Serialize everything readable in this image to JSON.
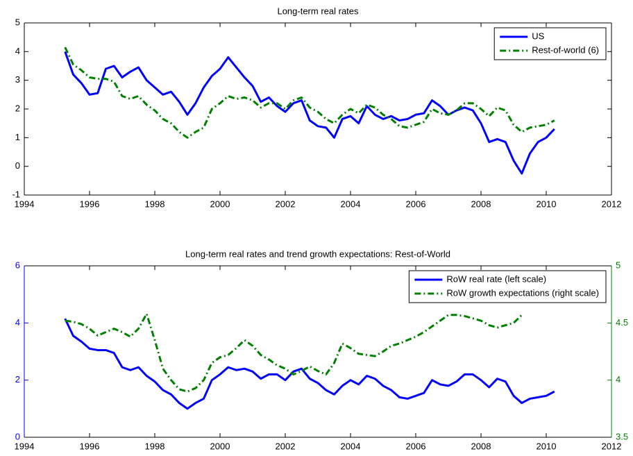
{
  "chart_data": [
    {
      "type": "line",
      "title": "Long-term real rates",
      "xlim": [
        1994,
        2012
      ],
      "xticks": [
        1994,
        1996,
        1998,
        2000,
        2002,
        2004,
        2006,
        2008,
        2010,
        2012
      ],
      "ylim": [
        -1,
        5
      ],
      "yticks": [
        -1,
        0,
        1,
        2,
        3,
        4,
        5
      ],
      "legend": "upper right",
      "series": [
        {
          "name": "US",
          "color": "#0000ff",
          "linestyle": "solid",
          "x": [
            1995.25,
            1995.5,
            1995.75,
            1996,
            1996.25,
            1996.5,
            1996.75,
            1997,
            1997.25,
            1997.5,
            1997.75,
            1998,
            1998.25,
            1998.5,
            1998.75,
            1999,
            1999.25,
            1999.5,
            1999.75,
            2000,
            2000.25,
            2000.5,
            2000.75,
            2001,
            2001.25,
            2001.5,
            2001.75,
            2002,
            2002.25,
            2002.5,
            2002.75,
            2003,
            2003.25,
            2003.5,
            2003.75,
            2004,
            2004.25,
            2004.5,
            2004.75,
            2005,
            2005.25,
            2005.5,
            2005.75,
            2006,
            2006.25,
            2006.5,
            2006.75,
            2007,
            2007.25,
            2007.5,
            2007.75,
            2008,
            2008.25,
            2008.5,
            2008.75,
            2009,
            2009.25,
            2009.5,
            2009.75,
            2010,
            2010.25
          ],
          "values": [
            4.0,
            3.2,
            2.9,
            2.5,
            2.55,
            3.4,
            3.5,
            3.1,
            3.3,
            3.45,
            3.0,
            2.75,
            2.5,
            2.6,
            2.25,
            1.8,
            2.2,
            2.75,
            3.15,
            3.4,
            3.8,
            3.45,
            3.1,
            2.8,
            2.25,
            2.4,
            2.1,
            1.9,
            2.2,
            2.3,
            1.6,
            1.4,
            1.35,
            1.0,
            1.65,
            1.75,
            1.5,
            2.1,
            1.8,
            1.65,
            1.75,
            1.6,
            1.65,
            1.8,
            1.85,
            2.3,
            2.1,
            1.8,
            1.95,
            2.05,
            1.95,
            1.5,
            0.85,
            0.95,
            0.85,
            0.2,
            -0.25,
            0.45,
            0.85,
            1.0,
            1.3
          ]
        },
        {
          "name": "Rest-of-world (6)",
          "color": "#008000",
          "linestyle": "dashdot",
          "x": [
            1995.25,
            1995.5,
            1995.75,
            1996,
            1996.25,
            1996.5,
            1996.75,
            1997,
            1997.25,
            1997.5,
            1997.75,
            1998,
            1998.25,
            1998.5,
            1998.75,
            1999,
            1999.25,
            1999.5,
            1999.75,
            2000,
            2000.25,
            2000.5,
            2000.75,
            2001,
            2001.25,
            2001.5,
            2001.75,
            2002,
            2002.25,
            2002.5,
            2002.75,
            2003,
            2003.25,
            2003.5,
            2003.75,
            2004,
            2004.25,
            2004.5,
            2004.75,
            2005,
            2005.25,
            2005.5,
            2005.75,
            2006,
            2006.25,
            2006.5,
            2006.75,
            2007,
            2007.25,
            2007.5,
            2007.75,
            2008,
            2008.25,
            2008.5,
            2008.75,
            2009,
            2009.25,
            2009.5,
            2009.75,
            2010,
            2010.25
          ],
          "values": [
            4.15,
            3.55,
            3.35,
            3.1,
            3.05,
            3.05,
            2.95,
            2.45,
            2.35,
            2.45,
            2.15,
            1.95,
            1.65,
            1.5,
            1.2,
            1.0,
            1.2,
            1.35,
            2.0,
            2.2,
            2.45,
            2.35,
            2.4,
            2.3,
            2.05,
            2.2,
            2.2,
            2.0,
            2.3,
            2.4,
            2.05,
            1.9,
            1.65,
            1.5,
            1.8,
            2.0,
            1.85,
            2.15,
            2.05,
            1.8,
            1.65,
            1.4,
            1.35,
            1.45,
            1.55,
            2.0,
            1.85,
            1.8,
            1.95,
            2.2,
            2.2,
            2.0,
            1.75,
            2.05,
            1.95,
            1.45,
            1.2,
            1.35,
            1.4,
            1.45,
            1.6
          ]
        }
      ]
    },
    {
      "type": "line",
      "title": "Long-term real rates and trend growth expectations: Rest-of-World",
      "xlim": [
        1994,
        2012
      ],
      "xticks": [
        1994,
        1996,
        1998,
        2000,
        2002,
        2004,
        2006,
        2008,
        2010,
        2012
      ],
      "ylim": [
        0,
        6
      ],
      "yticks": [
        0,
        2,
        4,
        6
      ],
      "ycolor": "#0000ff",
      "y2lim": [
        3.5,
        5
      ],
      "y2ticks": [
        3.5,
        4,
        4.5,
        5
      ],
      "y2color": "#008000",
      "legend": "upper right",
      "series": [
        {
          "name": "RoW real rate (left scale)",
          "color": "#0000ff",
          "linestyle": "solid",
          "x": [
            1995.25,
            1995.5,
            1995.75,
            1996,
            1996.25,
            1996.5,
            1996.75,
            1997,
            1997.25,
            1997.5,
            1997.75,
            1998,
            1998.25,
            1998.5,
            1998.75,
            1999,
            1999.25,
            1999.5,
            1999.75,
            2000,
            2000.25,
            2000.5,
            2000.75,
            2001,
            2001.25,
            2001.5,
            2001.75,
            2002,
            2002.25,
            2002.5,
            2002.75,
            2003,
            2003.25,
            2003.5,
            2003.75,
            2004,
            2004.25,
            2004.5,
            2004.75,
            2005,
            2005.25,
            2005.5,
            2005.75,
            2006,
            2006.25,
            2006.5,
            2006.75,
            2007,
            2007.25,
            2007.5,
            2007.75,
            2008,
            2008.25,
            2008.5,
            2008.75,
            2009,
            2009.25,
            2009.5,
            2009.75,
            2010,
            2010.25
          ],
          "values": [
            4.15,
            3.55,
            3.35,
            3.1,
            3.05,
            3.05,
            2.95,
            2.45,
            2.35,
            2.45,
            2.15,
            1.95,
            1.65,
            1.5,
            1.2,
            1.0,
            1.2,
            1.35,
            2.0,
            2.2,
            2.45,
            2.35,
            2.4,
            2.3,
            2.05,
            2.2,
            2.2,
            2.0,
            2.3,
            2.4,
            2.05,
            1.9,
            1.65,
            1.5,
            1.8,
            2.0,
            1.85,
            2.15,
            2.05,
            1.8,
            1.65,
            1.4,
            1.35,
            1.45,
            1.55,
            2.0,
            1.85,
            1.8,
            1.95,
            2.2,
            2.2,
            2.0,
            1.75,
            2.05,
            1.95,
            1.45,
            1.2,
            1.35,
            1.4,
            1.45,
            1.6
          ]
        },
        {
          "name": "RoW growth expectations (right scale)",
          "color": "#008000",
          "linestyle": "dashdot",
          "axis": "y2",
          "x": [
            1995.25,
            1995.5,
            1995.75,
            1996,
            1996.25,
            1996.5,
            1996.75,
            1997,
            1997.25,
            1997.5,
            1997.75,
            1998,
            1998.25,
            1998.5,
            1998.75,
            1999,
            1999.25,
            1999.5,
            1999.75,
            2000,
            2000.25,
            2000.5,
            2000.75,
            2001,
            2001.25,
            2001.5,
            2001.75,
            2002,
            2002.25,
            2002.5,
            2002.75,
            2003,
            2003.25,
            2003.5,
            2003.75,
            2004,
            2004.25,
            2004.5,
            2004.75,
            2005,
            2005.25,
            2005.5,
            2005.75,
            2006,
            2006.25,
            2006.5,
            2006.75,
            2007,
            2007.25,
            2007.5,
            2007.75,
            2008,
            2008.25,
            2008.5,
            2008.75,
            2009,
            2009.25
          ],
          "values": [
            4.52,
            4.51,
            4.49,
            4.45,
            4.39,
            4.42,
            4.45,
            4.42,
            4.38,
            4.45,
            4.58,
            4.35,
            4.1,
            4.0,
            3.92,
            3.9,
            3.93,
            4.0,
            4.15,
            4.2,
            4.22,
            4.28,
            4.35,
            4.3,
            4.22,
            4.18,
            4.13,
            4.1,
            4.05,
            4.08,
            4.12,
            4.08,
            4.05,
            4.15,
            4.32,
            4.28,
            4.23,
            4.22,
            4.21,
            4.25,
            4.3,
            4.32,
            4.35,
            4.38,
            4.42,
            4.47,
            4.52,
            4.57,
            4.57,
            4.56,
            4.54,
            4.52,
            4.48,
            4.46,
            4.48,
            4.5,
            4.57
          ]
        }
      ]
    }
  ]
}
